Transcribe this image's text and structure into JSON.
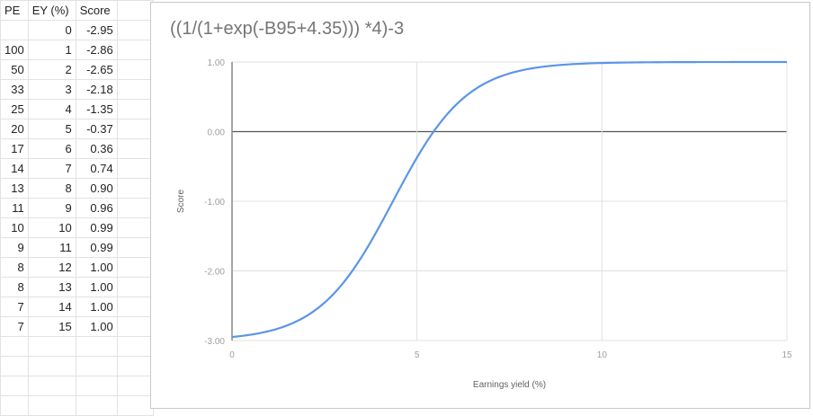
{
  "sheet": {
    "headers": [
      "PE",
      "EY (%)",
      "Score"
    ],
    "rows": [
      [
        "",
        "0",
        "-2.95"
      ],
      [
        "100",
        "1",
        "-2.86"
      ],
      [
        "50",
        "2",
        "-2.65"
      ],
      [
        "33",
        "3",
        "-2.18"
      ],
      [
        "25",
        "4",
        "-1.35"
      ],
      [
        "20",
        "5",
        "-0.37"
      ],
      [
        "17",
        "6",
        "0.36"
      ],
      [
        "14",
        "7",
        "0.74"
      ],
      [
        "13",
        "8",
        "0.90"
      ],
      [
        "11",
        "9",
        "0.96"
      ],
      [
        "10",
        "10",
        "0.99"
      ],
      [
        "9",
        "11",
        "0.99"
      ],
      [
        "8",
        "12",
        "1.00"
      ],
      [
        "8",
        "13",
        "1.00"
      ],
      [
        "7",
        "14",
        "1.00"
      ],
      [
        "7",
        "15",
        "1.00"
      ]
    ]
  },
  "chart": {
    "title": "((1/(1+exp(-B95+4.35))) *4)-3",
    "xlabel": "Earnings yield (%)",
    "ylabel": "Score",
    "line_color": "#5b95e8"
  },
  "chart_data": {
    "type": "line",
    "title": "((1/(1+exp(-B95+4.35))) *4)-3",
    "xlabel": "Earnings yield (%)",
    "ylabel": "Score",
    "x": [
      0,
      1,
      2,
      3,
      4,
      5,
      6,
      7,
      8,
      9,
      10,
      11,
      12,
      13,
      14,
      15
    ],
    "series": [
      {
        "name": "Score",
        "values": [
          -2.95,
          -2.86,
          -2.65,
          -2.18,
          -1.35,
          -0.37,
          0.36,
          0.74,
          0.9,
          0.96,
          0.99,
          0.99,
          1.0,
          1.0,
          1.0,
          1.0
        ]
      }
    ],
    "xlim": [
      0,
      15
    ],
    "ylim": [
      -3,
      1
    ],
    "x_ticks": [
      "0",
      "5",
      "10",
      "15"
    ],
    "y_ticks": [
      "1.00",
      "0.00",
      "-1.00",
      "-2.00",
      "-3.00"
    ],
    "grid": true,
    "legend": "none"
  }
}
